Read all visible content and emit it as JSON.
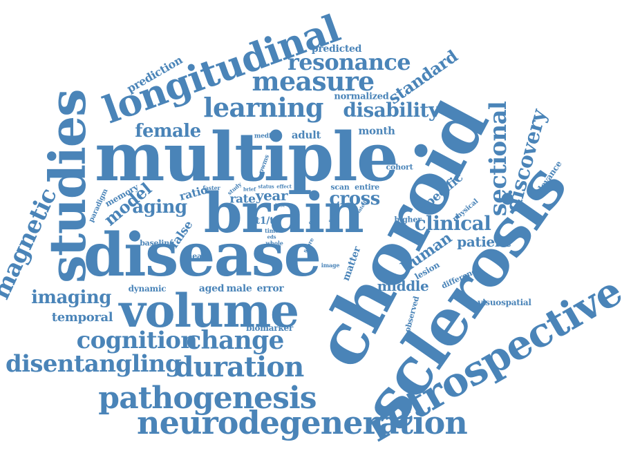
{
  "palette": {
    "word": "#4a84b8",
    "background": "#ffffff"
  },
  "words": [
    {
      "t": "multiple",
      "s": 96
    },
    {
      "t": "choroid",
      "s": 100
    },
    {
      "t": "sclerosis",
      "s": 92
    },
    {
      "t": "brain",
      "s": 80
    },
    {
      "t": "disease",
      "s": 86
    },
    {
      "t": "studies",
      "s": 72
    },
    {
      "t": "volume",
      "s": 66
    },
    {
      "t": "longitudinal",
      "s": 54
    },
    {
      "t": "retrospective",
      "s": 58
    },
    {
      "t": "neurodegeneration",
      "s": 46
    },
    {
      "t": "pathogenesis",
      "s": 44
    },
    {
      "t": "duration",
      "s": 40
    },
    {
      "t": "disentangling",
      "s": 34
    },
    {
      "t": "cognition",
      "s": 34
    },
    {
      "t": "change",
      "s": 36
    },
    {
      "t": "measure",
      "s": 38
    },
    {
      "t": "learning",
      "s": 38
    },
    {
      "t": "resonance",
      "s": 32
    },
    {
      "t": "magnetic",
      "s": 34
    },
    {
      "t": "imaging",
      "s": 26
    },
    {
      "t": "sectional",
      "s": 34
    },
    {
      "t": "discovery",
      "s": 30
    },
    {
      "t": "clinical",
      "s": 28
    },
    {
      "t": "disability",
      "s": 28
    },
    {
      "t": "standard",
      "s": 24
    },
    {
      "t": "female",
      "s": 26
    },
    {
      "t": "cross",
      "s": 26
    },
    {
      "t": "aging",
      "s": 26
    },
    {
      "t": "model",
      "s": 24
    },
    {
      "t": "human",
      "s": 22
    },
    {
      "t": "patient",
      "s": 20
    },
    {
      "t": "middle",
      "s": 20
    },
    {
      "t": "specific",
      "s": 18
    },
    {
      "t": "temporal",
      "s": 18
    },
    {
      "t": "predicted",
      "s": 14
    },
    {
      "t": "prediction",
      "s": 16
    },
    {
      "t": "normalized",
      "s": 13
    },
    {
      "t": "month",
      "s": 15
    },
    {
      "t": "adult",
      "s": 15
    },
    {
      "t": "year",
      "s": 20
    },
    {
      "t": "rate",
      "s": 17
    },
    {
      "t": "false",
      "s": 17
    },
    {
      "t": "ratio",
      "s": 16
    },
    {
      "t": "memory",
      "s": 12
    },
    {
      "t": "paradigm",
      "s": 10
    },
    {
      "t": "baseline",
      "s": 11
    },
    {
      "t": "linear",
      "s": 11
    },
    {
      "t": "dynamic",
      "s": 12
    },
    {
      "t": "aged",
      "s": 14
    },
    {
      "t": "male",
      "s": 14
    },
    {
      "t": "error",
      "s": 14
    },
    {
      "t": "biomarker",
      "s": 12
    },
    {
      "t": "visuospatial",
      "s": 12
    },
    {
      "t": "relevance",
      "s": 12
    },
    {
      "t": "physical",
      "s": 10
    },
    {
      "t": "lesion",
      "s": 12
    },
    {
      "t": "difference",
      "s": 11
    },
    {
      "t": "observed",
      "s": 11
    },
    {
      "t": "matter",
      "s": 14
    },
    {
      "t": "cohort",
      "s": 11
    },
    {
      "t": "scan",
      "s": 11
    },
    {
      "t": "entire",
      "s": 11
    },
    {
      "t": "higher",
      "s": 11
    },
    {
      "t": "median",
      "s": 9
    },
    {
      "t": "pwms",
      "s": 9
    },
    {
      "t": "faster",
      "s": 8
    },
    {
      "t": "study",
      "s": 8
    },
    {
      "t": "brief",
      "s": 7
    },
    {
      "t": "status",
      "s": 7
    },
    {
      "t": "effect",
      "s": 7
    },
    {
      "t": "test",
      "s": 7
    },
    {
      "t": "t1/t",
      "s": 14
    },
    {
      "t": "time",
      "s": 8
    },
    {
      "t": "eds",
      "s": 7
    },
    {
      "t": "whole",
      "s": 8
    },
    {
      "t": "score",
      "s": 8
    },
    {
      "t": "grey",
      "s": 8
    },
    {
      "t": "scale",
      "s": 7
    },
    {
      "t": "related",
      "s": 7
    },
    {
      "t": "image",
      "s": 8
    }
  ]
}
